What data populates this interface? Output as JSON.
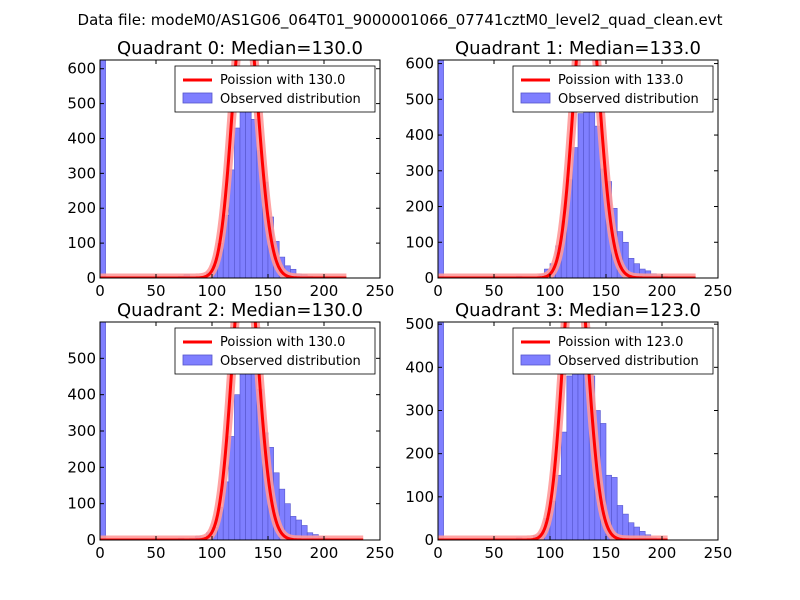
{
  "figure": {
    "suptitle": "Data file: modeM0/AS1G06_064T01_9000001066_07741cztM0_level2_quad_clean.evt"
  },
  "colors": {
    "hist_fill": "#7f7fff",
    "hist_edge": "#5555cc",
    "poisson": "#ff0000",
    "poisson_halo": "#ff9a9a",
    "axes": "#000000"
  },
  "legend": {
    "position": "top-right",
    "observed_label": "Observed distribution"
  },
  "chart_data": [
    {
      "type": "bar",
      "title": "Quadrant 0: Median=130.0",
      "median": 130.0,
      "poisson_label": "Poission with 130.0",
      "xlim": [
        0,
        250
      ],
      "ylim": [
        0,
        625
      ],
      "xticks": [
        0,
        50,
        100,
        150,
        200,
        250
      ],
      "yticks": [
        0,
        100,
        200,
        300,
        400,
        500,
        600
      ],
      "bin_width": 5,
      "poisson_total": 4600,
      "poisson_xmax": 220,
      "bins": [
        {
          "x": 0,
          "count": 625
        },
        {
          "x": 70,
          "count": 5
        },
        {
          "x": 75,
          "count": 10
        },
        {
          "x": 90,
          "count": 5
        },
        {
          "x": 95,
          "count": 15
        },
        {
          "x": 100,
          "count": 35
        },
        {
          "x": 105,
          "count": 100
        },
        {
          "x": 110,
          "count": 180
        },
        {
          "x": 115,
          "count": 310
        },
        {
          "x": 120,
          "count": 430
        },
        {
          "x": 125,
          "count": 520
        },
        {
          "x": 130,
          "count": 565
        },
        {
          "x": 135,
          "count": 455
        },
        {
          "x": 140,
          "count": 365
        },
        {
          "x": 145,
          "count": 275
        },
        {
          "x": 150,
          "count": 175
        },
        {
          "x": 155,
          "count": 105
        },
        {
          "x": 160,
          "count": 60
        },
        {
          "x": 165,
          "count": 35
        },
        {
          "x": 170,
          "count": 25
        },
        {
          "x": 175,
          "count": 12
        },
        {
          "x": 180,
          "count": 10
        },
        {
          "x": 185,
          "count": 5
        },
        {
          "x": 190,
          "count": 3
        },
        {
          "x": 195,
          "count": 2
        }
      ]
    },
    {
      "type": "bar",
      "title": "Quadrant 1: Median=133.0",
      "median": 133.0,
      "poisson_label": "Poission with 133.0",
      "xlim": [
        0,
        250
      ],
      "ylim": [
        0,
        610
      ],
      "xticks": [
        0,
        50,
        100,
        150,
        200,
        250
      ],
      "yticks": [
        0,
        100,
        200,
        300,
        400,
        500,
        600
      ],
      "bin_width": 5,
      "poisson_total": 4800,
      "poisson_xmax": 230,
      "bins": [
        {
          "x": 0,
          "count": 610
        },
        {
          "x": 70,
          "count": 5
        },
        {
          "x": 90,
          "count": 10
        },
        {
          "x": 95,
          "count": 25
        },
        {
          "x": 100,
          "count": 40
        },
        {
          "x": 105,
          "count": 90
        },
        {
          "x": 110,
          "count": 160
        },
        {
          "x": 115,
          "count": 275
        },
        {
          "x": 120,
          "count": 365
        },
        {
          "x": 125,
          "count": 460
        },
        {
          "x": 130,
          "count": 535
        },
        {
          "x": 135,
          "count": 500
        },
        {
          "x": 140,
          "count": 425
        },
        {
          "x": 145,
          "count": 305
        },
        {
          "x": 150,
          "count": 270
        },
        {
          "x": 155,
          "count": 195
        },
        {
          "x": 160,
          "count": 130
        },
        {
          "x": 165,
          "count": 100
        },
        {
          "x": 170,
          "count": 55
        },
        {
          "x": 175,
          "count": 40
        },
        {
          "x": 180,
          "count": 25
        },
        {
          "x": 185,
          "count": 20
        },
        {
          "x": 190,
          "count": 12
        },
        {
          "x": 195,
          "count": 8
        },
        {
          "x": 200,
          "count": 5
        }
      ]
    },
    {
      "type": "bar",
      "title": "Quadrant 2: Median=130.0",
      "median": 130.0,
      "poisson_label": "Poission with 130.0",
      "xlim": [
        0,
        250
      ],
      "ylim": [
        0,
        600
      ],
      "xticks": [
        0,
        50,
        100,
        150,
        200,
        250
      ],
      "yticks": [
        0,
        100,
        200,
        300,
        400,
        500
      ],
      "bin_width": 5,
      "poisson_total": 4700,
      "poisson_xmax": 235,
      "bins": [
        {
          "x": 0,
          "count": 600
        },
        {
          "x": 70,
          "count": 5
        },
        {
          "x": 80,
          "count": 5
        },
        {
          "x": 85,
          "count": 10
        },
        {
          "x": 90,
          "count": 8
        },
        {
          "x": 95,
          "count": 20
        },
        {
          "x": 100,
          "count": 35
        },
        {
          "x": 105,
          "count": 90
        },
        {
          "x": 110,
          "count": 160
        },
        {
          "x": 115,
          "count": 285
        },
        {
          "x": 120,
          "count": 400
        },
        {
          "x": 125,
          "count": 505
        },
        {
          "x": 130,
          "count": 560
        },
        {
          "x": 135,
          "count": 490
        },
        {
          "x": 140,
          "count": 415
        },
        {
          "x": 145,
          "count": 295
        },
        {
          "x": 150,
          "count": 255
        },
        {
          "x": 155,
          "count": 185
        },
        {
          "x": 160,
          "count": 140
        },
        {
          "x": 165,
          "count": 100
        },
        {
          "x": 170,
          "count": 65
        },
        {
          "x": 175,
          "count": 55
        },
        {
          "x": 180,
          "count": 40
        },
        {
          "x": 185,
          "count": 20
        },
        {
          "x": 190,
          "count": 15
        },
        {
          "x": 195,
          "count": 10
        },
        {
          "x": 200,
          "count": 5
        },
        {
          "x": 205,
          "count": 3
        }
      ]
    },
    {
      "type": "bar",
      "title": "Quadrant 3: Median=123.0",
      "median": 123.0,
      "poisson_label": "Poission with 123.0",
      "xlim": [
        0,
        250
      ],
      "ylim": [
        0,
        505
      ],
      "xticks": [
        0,
        50,
        100,
        150,
        200,
        250
      ],
      "yticks": [
        0,
        100,
        200,
        300,
        400,
        500
      ],
      "bin_width": 5,
      "poisson_total": 3900,
      "poisson_xmax": 205,
      "bins": [
        {
          "x": 0,
          "count": 505
        },
        {
          "x": 70,
          "count": 5
        },
        {
          "x": 85,
          "count": 10
        },
        {
          "x": 90,
          "count": 15
        },
        {
          "x": 95,
          "count": 50
        },
        {
          "x": 100,
          "count": 90
        },
        {
          "x": 105,
          "count": 150
        },
        {
          "x": 110,
          "count": 250
        },
        {
          "x": 115,
          "count": 380
        },
        {
          "x": 120,
          "count": 460
        },
        {
          "x": 125,
          "count": 460
        },
        {
          "x": 130,
          "count": 410
        },
        {
          "x": 135,
          "count": 380
        },
        {
          "x": 140,
          "count": 300
        },
        {
          "x": 145,
          "count": 270
        },
        {
          "x": 150,
          "count": 150
        },
        {
          "x": 155,
          "count": 145
        },
        {
          "x": 160,
          "count": 80
        },
        {
          "x": 165,
          "count": 60
        },
        {
          "x": 170,
          "count": 40
        },
        {
          "x": 175,
          "count": 30
        },
        {
          "x": 180,
          "count": 20
        },
        {
          "x": 185,
          "count": 12
        },
        {
          "x": 190,
          "count": 5
        }
      ]
    }
  ]
}
